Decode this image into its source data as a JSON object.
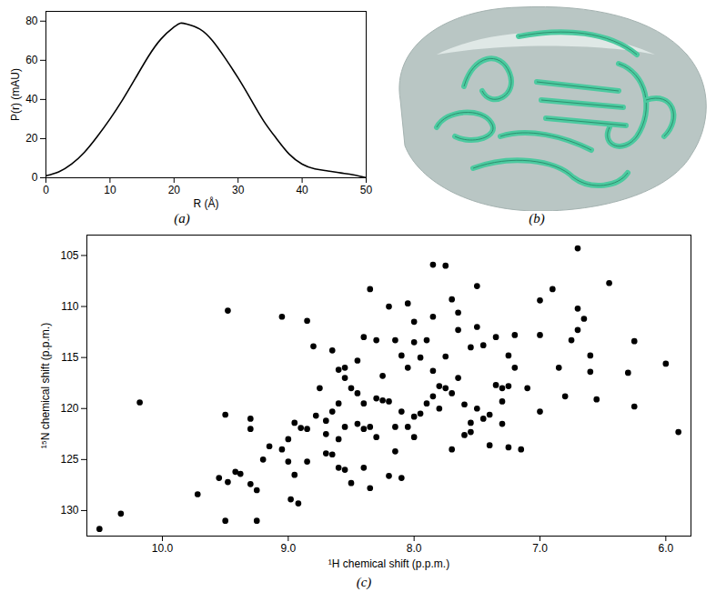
{
  "chart_data": [
    {
      "type": "line",
      "title": "(a)",
      "xlabel": "R (Å)",
      "ylabel": "P(r) (mAU)",
      "color": "#000000",
      "x": [
        0,
        2,
        4,
        6,
        8,
        10,
        12,
        14,
        16,
        18,
        20,
        21,
        22,
        24,
        26,
        28,
        30,
        32,
        34,
        36,
        38,
        40,
        42,
        44,
        46,
        48,
        50
      ],
      "values": [
        1,
        3,
        7,
        13,
        21,
        30,
        40,
        51,
        62,
        71,
        77,
        79,
        78.5,
        76,
        70,
        61,
        51,
        40,
        29,
        20,
        12,
        7,
        4.5,
        3.5,
        2.5,
        1.5,
        0
      ],
      "xlim": [
        0,
        50
      ],
      "xticks": [
        0,
        10,
        20,
        30,
        40,
        50
      ],
      "ylim": [
        0,
        85
      ],
      "yticks": [
        0,
        20,
        40,
        60,
        80
      ]
    },
    {
      "type": "image",
      "title": "(b)"
    },
    {
      "type": "scatter",
      "title": "(c)",
      "xlabel": "¹H chemical shift (p.p.m.)",
      "ylabel": "¹⁵N chemical shift (p.p.m.)",
      "color": "#000000",
      "xlim": [
        10.6,
        5.8
      ],
      "xticks": [
        10,
        9,
        8,
        7,
        6
      ],
      "ylim": [
        132.5,
        103
      ],
      "yticks": [
        105,
        110,
        115,
        120,
        125,
        130
      ],
      "x": [
        10.33,
        10.18,
        10.5,
        9.72,
        9.5,
        9.25,
        9.48,
        9.48,
        9.55,
        9.42,
        9.38,
        9.3,
        9.25,
        9.5,
        9.3,
        9.3,
        9.15,
        9.2,
        9.05,
        9.0,
        8.95,
        8.98,
        8.92,
        8.95,
        8.9,
        8.85,
        9.0,
        8.85,
        8.7,
        8.65,
        8.6,
        8.55,
        8.4,
        8.5,
        8.35,
        8.2,
        8.15,
        8.1,
        9.05,
        8.85,
        8.8,
        8.78,
        8.7,
        8.75,
        8.6,
        8.55,
        8.55,
        8.5,
        8.45,
        8.6,
        8.4,
        8.3,
        8.25,
        8.2,
        8.65,
        8.55,
        8.45,
        8.4,
        8.35,
        8.3,
        8.15,
        8.05,
        8.0,
        8.7,
        8.6,
        8.1,
        8.0,
        7.95,
        7.9,
        7.85,
        7.75,
        7.8,
        7.7,
        7.65,
        7.6,
        7.5,
        7.55,
        7.45,
        7.4,
        7.35,
        7.3,
        7.25,
        7.6,
        7.55,
        7.4,
        7.25,
        7.15,
        7.7,
        7.3,
        7.8,
        8.35,
        8.2,
        8.05,
        7.85,
        7.75,
        6.7,
        7.7,
        7.5,
        8.0,
        7.85,
        7.65,
        7.65,
        7.5,
        7.55,
        7.45,
        8.3,
        8.15,
        8.0,
        7.9,
        8.1,
        7.95,
        8.05,
        7.85,
        7.75,
        8.25,
        8.65,
        8.45,
        8.4,
        7.25,
        7.2,
        7.0,
        7.0,
        6.9,
        6.7,
        6.65,
        6.7,
        6.75,
        6.6,
        6.45,
        6.85,
        6.8,
        6.55,
        6.6,
        6.25,
        6.3,
        6.25,
        6.0,
        5.9,
        7.0,
        7.1,
        7.2,
        7.35,
        7.3
      ],
      "y": [
        130.3,
        119.4,
        131.8,
        128.4,
        131.0,
        131.0,
        110.4,
        127.2,
        126.8,
        126.2,
        126.4,
        127.4,
        128.0,
        120.6,
        121.0,
        122.0,
        123.7,
        125.0,
        124.0,
        125.2,
        126.5,
        128.9,
        129.3,
        121.4,
        121.9,
        122.0,
        123.0,
        125.2,
        124.4,
        124.5,
        125.8,
        126.0,
        125.8,
        127.3,
        127.8,
        126.6,
        124.2,
        126.8,
        111.0,
        111.4,
        113.9,
        120.7,
        121.2,
        118.0,
        116.2,
        116.0,
        117.0,
        118.0,
        118.5,
        119.5,
        119.5,
        119.0,
        119.2,
        119.3,
        120.3,
        121.8,
        121.5,
        122.0,
        121.8,
        122.8,
        121.8,
        121.8,
        122.8,
        122.5,
        123.0,
        120.3,
        120.8,
        120.5,
        119.5,
        118.8,
        118.0,
        117.8,
        118.5,
        117.0,
        119.6,
        120.0,
        121.4,
        121.0,
        120.6,
        117.7,
        118.0,
        117.8,
        122.6,
        122.3,
        123.6,
        123.8,
        124.0,
        124.0,
        119.3,
        120.0,
        108.3,
        110.0,
        109.7,
        105.9,
        106.0,
        104.3,
        109.3,
        108.0,
        111.5,
        111.0,
        110.6,
        112.3,
        112.0,
        114.0,
        113.8,
        113.3,
        113.3,
        113.5,
        113.3,
        114.8,
        115.0,
        116.0,
        116.3,
        114.9,
        116.8,
        114.3,
        115.3,
        113.0,
        114.8,
        112.8,
        112.8,
        109.4,
        108.3,
        110.2,
        111.2,
        112.3,
        113.3,
        114.8,
        107.7,
        116.0,
        118.8,
        119.1,
        116.4,
        113.4,
        116.5,
        119.8,
        115.6,
        122.3,
        120.3,
        118.0,
        116.0,
        113.0,
        121.5
      ]
    }
  ]
}
